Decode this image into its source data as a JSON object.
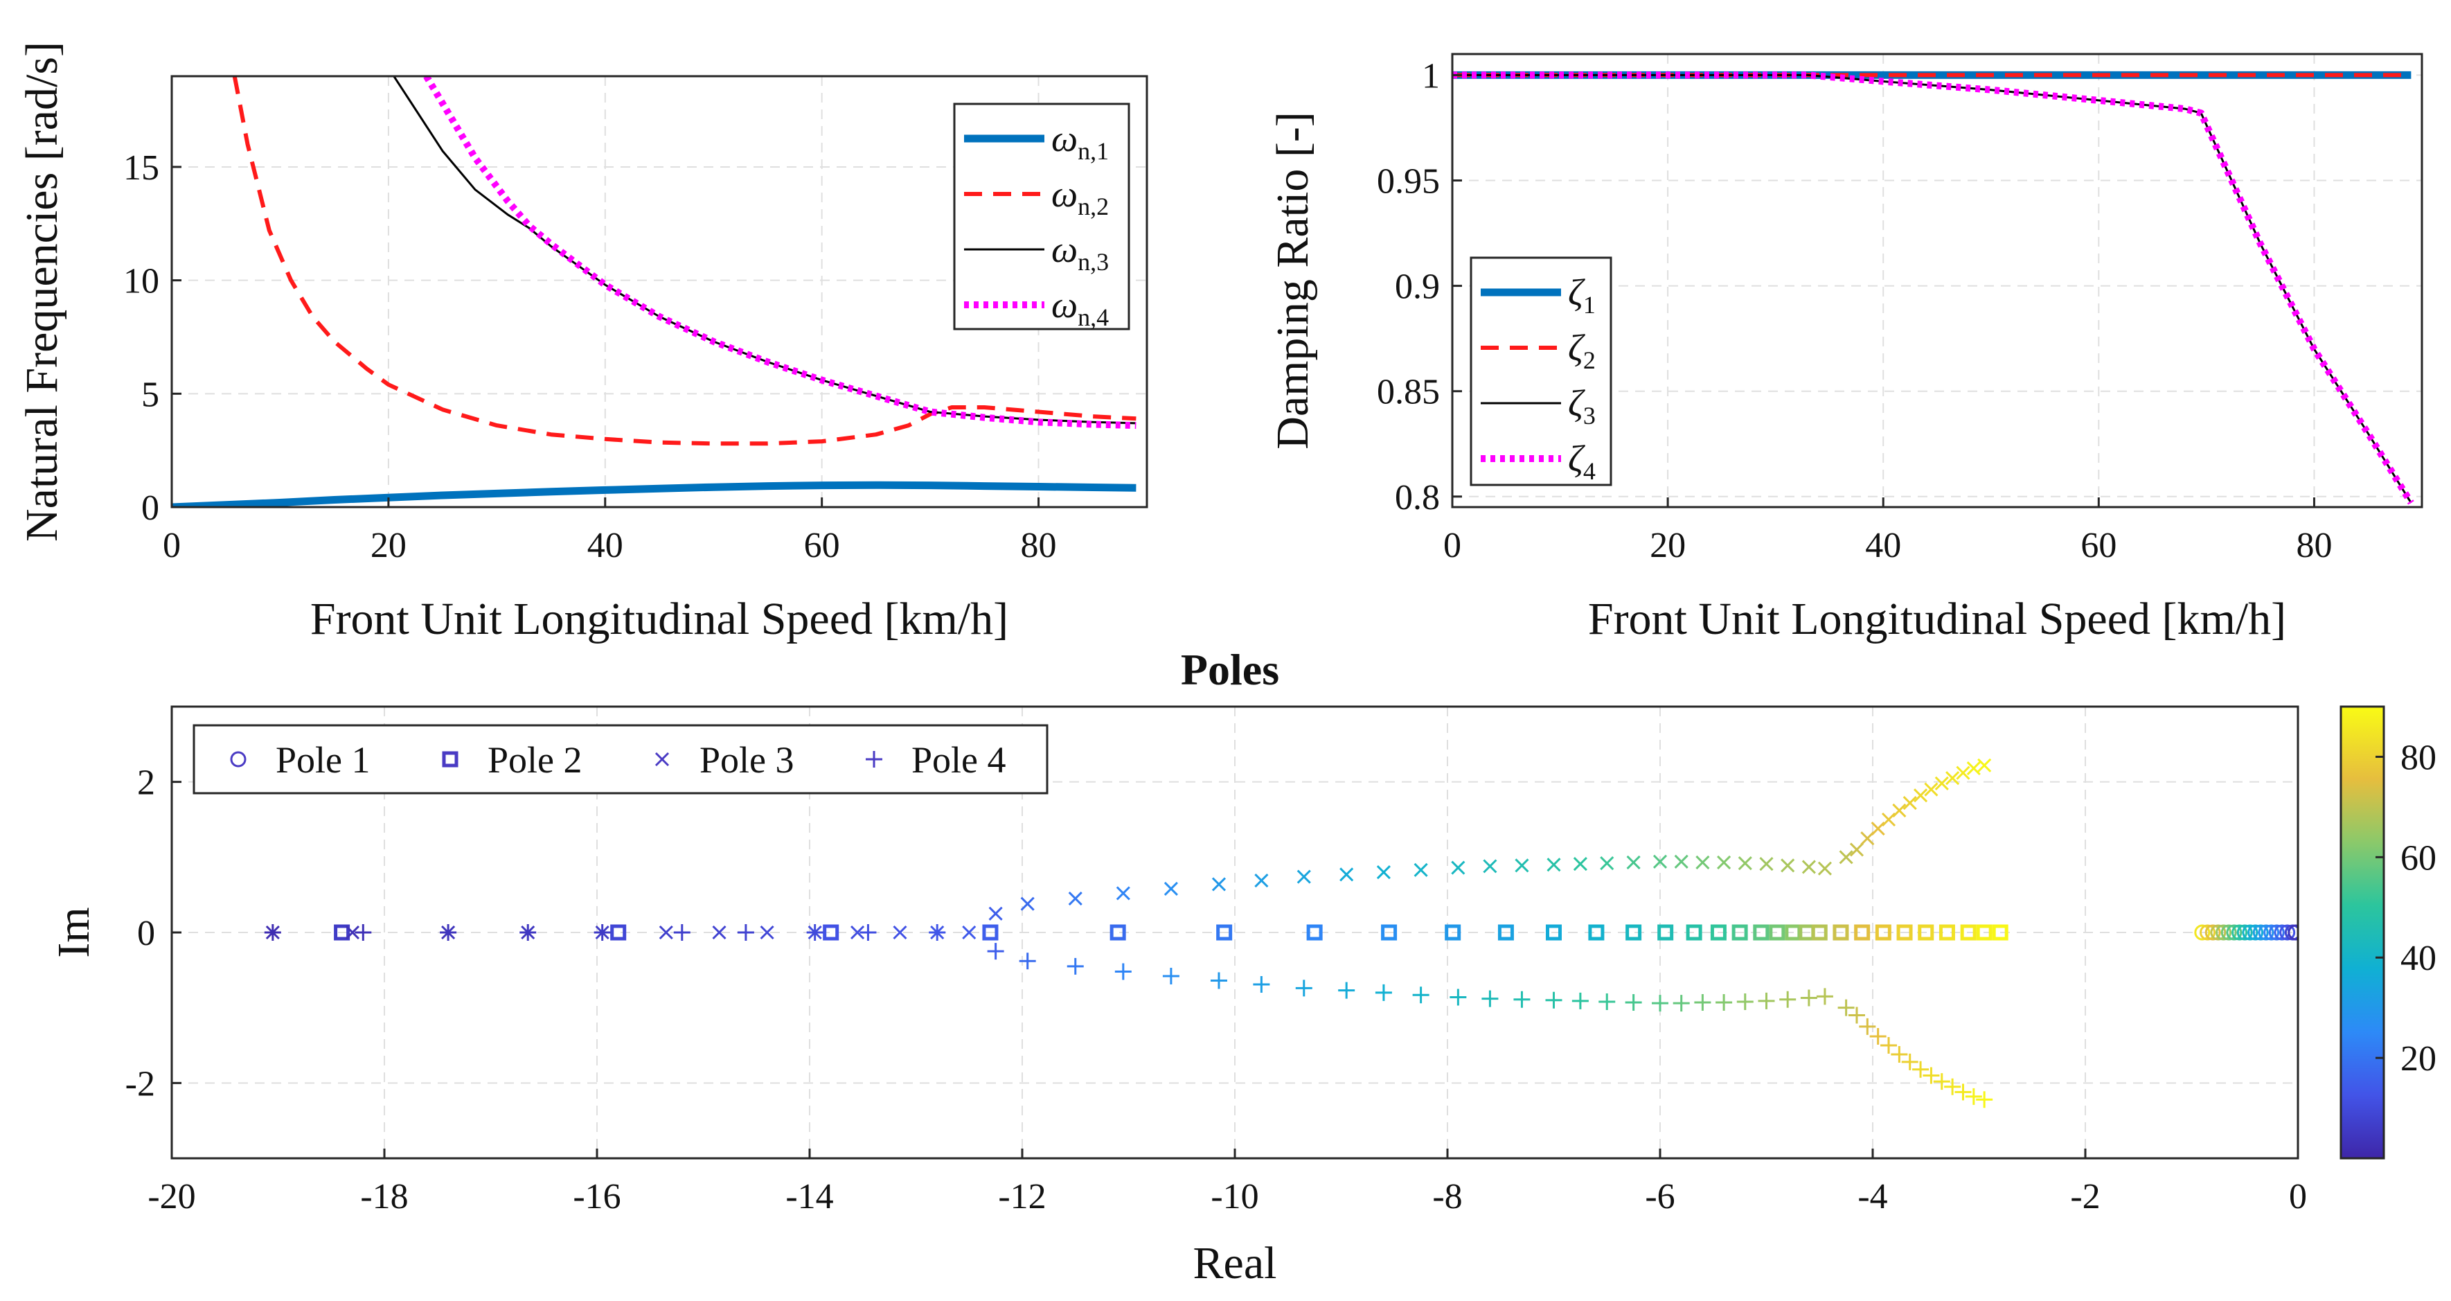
{
  "chart_data": [
    {
      "id": "natfreq",
      "type": "line",
      "xlabel": "Front Unit Longitudinal Speed [km/h]",
      "ylabel": "Natural Frequencies [rad/s]",
      "xlim": [
        0,
        90
      ],
      "ylim": [
        0,
        19
      ],
      "xticks": [
        0,
        20,
        40,
        60,
        80
      ],
      "yticks": [
        0,
        5,
        10,
        15
      ],
      "grid": true,
      "legend_position": "top-right",
      "series": [
        {
          "name": "ω",
          "sub": "n,1",
          "color": "#0072BD",
          "style": "solid-thick",
          "x": [
            0,
            5,
            10,
            15,
            20,
            25,
            30,
            35,
            40,
            45,
            50,
            55,
            60,
            65,
            70,
            75,
            80,
            85,
            89
          ],
          "y": [
            0,
            0.1,
            0.2,
            0.32,
            0.42,
            0.52,
            0.6,
            0.68,
            0.75,
            0.82,
            0.88,
            0.93,
            0.96,
            0.97,
            0.96,
            0.93,
            0.9,
            0.87,
            0.85
          ]
        },
        {
          "name": "ω",
          "sub": "n,2",
          "color": "#FF1A1A",
          "style": "dashed",
          "x": [
            5.8,
            7,
            9,
            11,
            13,
            15,
            18,
            20,
            25,
            30,
            35,
            40,
            45,
            50,
            55,
            60,
            65,
            68,
            70,
            72,
            75,
            80,
            85,
            89
          ],
          "y": [
            19,
            16,
            12.2,
            10,
            8.4,
            7.3,
            6.1,
            5.4,
            4.3,
            3.6,
            3.2,
            3,
            2.85,
            2.8,
            2.8,
            2.9,
            3.2,
            3.6,
            4.1,
            4.4,
            4.4,
            4.2,
            4.0,
            3.9
          ]
        },
        {
          "name": "ω",
          "sub": "n,3",
          "color": "#000000",
          "style": "solid-thin",
          "x": [
            20.5,
            22,
            25,
            28,
            31,
            33,
            35,
            40,
            45,
            50,
            55,
            60,
            65,
            70,
            75,
            80,
            85,
            89
          ],
          "y": [
            19,
            17.9,
            15.7,
            14,
            12.9,
            12.3,
            11.5,
            9.8,
            8.4,
            7.3,
            6.4,
            5.6,
            4.9,
            4.2,
            4.0,
            3.85,
            3.75,
            3.7
          ]
        },
        {
          "name": "ω",
          "sub": "n,4",
          "color": "#FF00FF",
          "style": "dotted",
          "x": [
            23.5,
            25,
            28,
            31,
            33,
            35,
            40,
            45,
            50,
            55,
            60,
            65,
            70,
            75,
            80,
            85,
            89
          ],
          "y": [
            19,
            17.8,
            15.4,
            13.5,
            12.4,
            11.6,
            9.8,
            8.4,
            7.3,
            6.4,
            5.6,
            4.9,
            4.2,
            3.95,
            3.75,
            3.65,
            3.6
          ]
        }
      ]
    },
    {
      "id": "damping",
      "type": "line",
      "xlabel": "Front Unit Longitudinal Speed [km/h]",
      "ylabel": "Damping Ratio [-]",
      "xlim": [
        0,
        90
      ],
      "ylim": [
        0.795,
        1.01
      ],
      "xticks": [
        0,
        20,
        40,
        60,
        80
      ],
      "yticks": [
        0.8,
        0.85,
        0.9,
        0.95,
        1
      ],
      "ytick_labels": [
        "0.8",
        "0.85",
        "0.9",
        "0.95",
        "1"
      ],
      "grid": true,
      "legend_position": "bottom-left",
      "series": [
        {
          "name": "ζ",
          "sub": "1",
          "color": "#0072BD",
          "style": "solid-thick",
          "x": [
            0,
            89
          ],
          "y": [
            1,
            1
          ]
        },
        {
          "name": "ζ",
          "sub": "2",
          "color": "#FF1A1A",
          "style": "dashed",
          "x": [
            0,
            89
          ],
          "y": [
            1,
            1
          ]
        },
        {
          "name": "ζ",
          "sub": "3",
          "color": "#000000",
          "style": "solid-thin",
          "x": [
            0,
            33,
            40,
            50,
            60,
            68,
            69.5,
            75,
            80,
            85,
            89
          ],
          "y": [
            1,
            1,
            0.997,
            0.993,
            0.988,
            0.984,
            0.982,
            0.92,
            0.87,
            0.83,
            0.797
          ]
        },
        {
          "name": "ζ",
          "sub": "4",
          "color": "#FF00FF",
          "style": "dotted",
          "x": [
            0,
            33,
            40,
            50,
            60,
            68,
            69.5,
            75,
            80,
            85,
            89
          ],
          "y": [
            1,
            1,
            0.997,
            0.993,
            0.988,
            0.984,
            0.982,
            0.92,
            0.87,
            0.83,
            0.797
          ]
        }
      ]
    },
    {
      "id": "poles",
      "type": "scatter",
      "title": "Poles",
      "xlabel": "Real",
      "ylabel": "Im",
      "xlim": [
        -20,
        0
      ],
      "ylim": [
        -3,
        3
      ],
      "xticks": [
        -20,
        -18,
        -16,
        -14,
        -12,
        -10,
        -8,
        -6,
        -4,
        -2,
        0
      ],
      "yticks": [
        -2,
        0,
        2
      ],
      "grid": true,
      "legend_position": "top-left",
      "legend": [
        {
          "label": "Pole 1",
          "marker": "circle"
        },
        {
          "label": "Pole 2",
          "marker": "square"
        },
        {
          "label": "Pole 3",
          "marker": "x"
        },
        {
          "label": "Pole 4",
          "marker": "plus"
        }
      ],
      "colorbar": {
        "min": 0,
        "max": 90,
        "ticks": [
          20,
          40,
          60,
          80
        ],
        "colormap": "parula"
      },
      "series": [
        {
          "name": "Pole 1",
          "marker": "circle",
          "real": [
            -0.9,
            -0.85,
            -0.8,
            -0.75,
            -0.7,
            -0.65,
            -0.6,
            -0.55,
            -0.5,
            -0.45,
            -0.4,
            -0.35,
            -0.3,
            -0.25,
            -0.2,
            -0.15,
            -0.1,
            -0.05,
            -0.02
          ],
          "imag": [
            0,
            0,
            0,
            0,
            0,
            0,
            0,
            0,
            0,
            0,
            0,
            0,
            0,
            0,
            0,
            0,
            0,
            0,
            0
          ],
          "speed": [
            85,
            80,
            75,
            70,
            65,
            60,
            55,
            50,
            45,
            40,
            36,
            32,
            28,
            24,
            20,
            16,
            12,
            8,
            4
          ]
        },
        {
          "name": "Pole 2",
          "marker": "square",
          "real": [
            -18.4,
            -15.8,
            -13.8,
            -12.3,
            -11.1,
            -10.1,
            -9.25,
            -8.55,
            -7.95,
            -7.45,
            -7.0,
            -6.6,
            -6.25,
            -5.95,
            -5.68,
            -5.45,
            -5.25,
            -5.05,
            -4.9,
            -4.75,
            -4.62,
            -4.5,
            -4.3,
            -4.1,
            -3.9,
            -3.7,
            -3.5,
            -3.3,
            -3.1,
            -2.95,
            -2.8
          ],
          "imag": [
            0,
            0,
            0,
            0,
            0,
            0,
            0,
            0,
            0,
            0,
            0,
            0,
            0,
            0,
            0,
            0,
            0,
            0,
            0,
            0,
            0,
            0,
            0,
            0,
            0,
            0,
            0,
            0,
            0,
            0,
            0
          ],
          "speed": [
            6,
            9,
            12,
            15,
            18,
            21,
            24,
            27,
            30,
            33,
            36,
            39,
            42,
            45,
            48,
            51,
            54,
            57,
            60,
            63,
            66,
            69,
            72,
            75,
            78,
            80,
            82,
            84,
            86,
            88,
            89
          ]
        },
        {
          "name": "Pole 3",
          "marker": "x",
          "real": [
            -19.05,
            -18.3,
            -17.4,
            -16.65,
            -15.95,
            -15.35,
            -14.85,
            -14.4,
            -13.95,
            -13.55,
            -13.15,
            -12.8,
            -12.5,
            -12.25,
            -11.95,
            -11.5,
            -11.05,
            -10.6,
            -10.15,
            -9.75,
            -9.35,
            -8.95,
            -8.6,
            -8.25,
            -7.9,
            -7.6,
            -7.3,
            -7.0,
            -6.75,
            -6.5,
            -6.25,
            -6.0,
            -5.8,
            -5.6,
            -5.4,
            -5.2,
            -5.0,
            -4.8,
            -4.6,
            -4.45,
            -4.25,
            -4.15,
            -4.05,
            -3.95,
            -3.85,
            -3.75,
            -3.65,
            -3.55,
            -3.45,
            -3.35,
            -3.25,
            -3.15,
            -3.05,
            -2.95
          ],
          "imag": [
            0,
            0,
            0,
            0,
            0,
            0,
            0,
            0,
            0,
            0,
            0,
            0,
            0,
            0.25,
            0.38,
            0.45,
            0.52,
            0.58,
            0.64,
            0.69,
            0.74,
            0.77,
            0.8,
            0.83,
            0.86,
            0.88,
            0.89,
            0.9,
            0.91,
            0.92,
            0.93,
            0.94,
            0.94,
            0.93,
            0.93,
            0.92,
            0.91,
            0.89,
            0.87,
            0.85,
            1.0,
            1.1,
            1.25,
            1.38,
            1.5,
            1.62,
            1.72,
            1.82,
            1.9,
            1.98,
            2.05,
            2.12,
            2.18,
            2.22
          ],
          "speed": [
            2,
            3,
            4,
            5,
            6,
            7,
            8,
            9,
            10,
            11,
            12,
            13,
            14,
            15,
            18,
            21,
            24,
            27,
            30,
            32,
            34,
            36,
            38,
            40,
            42,
            44,
            46,
            48,
            50,
            52,
            54,
            56,
            58,
            60,
            62,
            64,
            66,
            67,
            68,
            69,
            70,
            72,
            74,
            76,
            78,
            79,
            80,
            82,
            83,
            84,
            85,
            86,
            88,
            89
          ]
        },
        {
          "name": "Pole 4",
          "marker": "plus",
          "real": [
            -19.05,
            -18.2,
            -17.4,
            -16.65,
            -15.95,
            -15.2,
            -14.6,
            -13.95,
            -13.45,
            -12.8,
            -12.25,
            -11.95,
            -11.5,
            -11.05,
            -10.6,
            -10.15,
            -9.75,
            -9.35,
            -8.95,
            -8.6,
            -8.25,
            -7.9,
            -7.6,
            -7.3,
            -7.0,
            -6.75,
            -6.5,
            -6.25,
            -6.0,
            -5.8,
            -5.6,
            -5.4,
            -5.2,
            -5.0,
            -4.8,
            -4.6,
            -4.45,
            -4.25,
            -4.15,
            -4.05,
            -3.95,
            -3.85,
            -3.75,
            -3.65,
            -3.55,
            -3.45,
            -3.35,
            -3.25,
            -3.15,
            -3.05,
            -2.95
          ],
          "imag": [
            0,
            0,
            0,
            0,
            0,
            0,
            0,
            0,
            0,
            0,
            -0.25,
            -0.38,
            -0.45,
            -0.52,
            -0.58,
            -0.64,
            -0.69,
            -0.74,
            -0.77,
            -0.8,
            -0.83,
            -0.86,
            -0.88,
            -0.89,
            -0.9,
            -0.91,
            -0.92,
            -0.93,
            -0.94,
            -0.94,
            -0.93,
            -0.93,
            -0.92,
            -0.91,
            -0.89,
            -0.87,
            -0.85,
            -1.0,
            -1.1,
            -1.25,
            -1.38,
            -1.5,
            -1.62,
            -1.72,
            -1.82,
            -1.9,
            -1.98,
            -2.05,
            -2.12,
            -2.18,
            -2.22
          ],
          "speed": [
            2,
            3,
            4,
            5,
            6,
            7,
            8,
            10,
            11,
            13,
            15,
            18,
            21,
            24,
            27,
            30,
            32,
            34,
            36,
            38,
            40,
            42,
            44,
            46,
            48,
            50,
            52,
            54,
            56,
            58,
            60,
            62,
            64,
            66,
            67,
            68,
            69,
            70,
            72,
            74,
            76,
            78,
            79,
            80,
            82,
            83,
            84,
            85,
            86,
            88,
            89
          ]
        }
      ]
    }
  ]
}
